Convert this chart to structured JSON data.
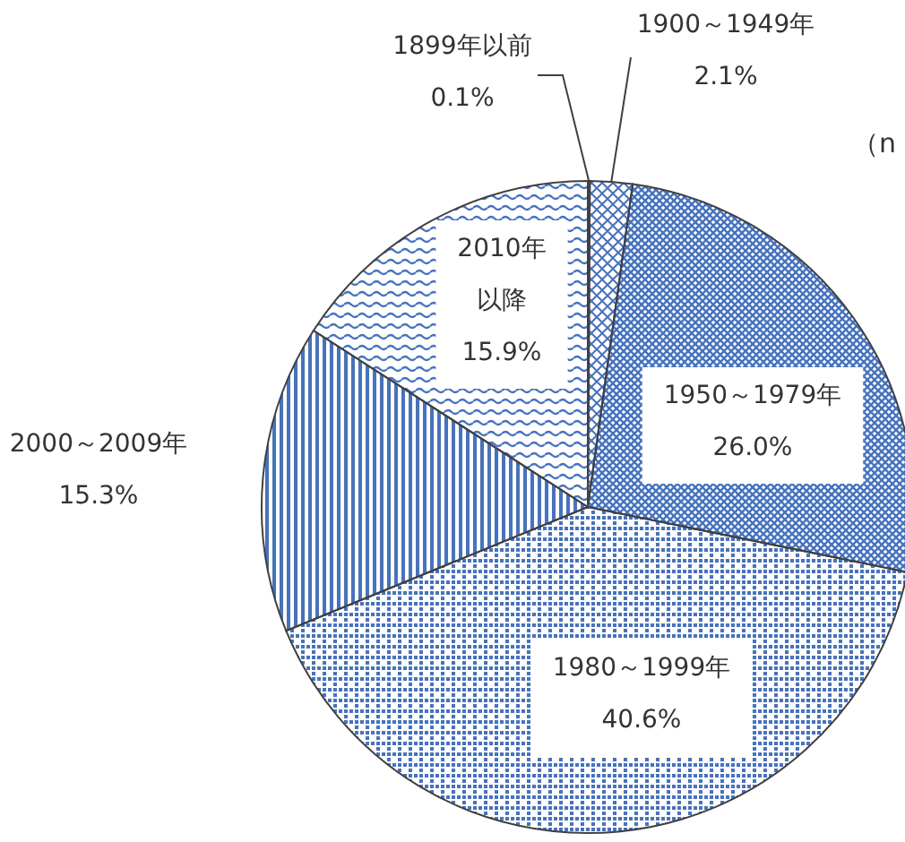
{
  "chart_data": {
    "type": "pie",
    "categories": [
      "1899年以前",
      "1900～1949年",
      "1950～1979年",
      "1980～1999年",
      "2000～2009年",
      "2010年以降"
    ],
    "values": [
      0.1,
      2.1,
      26.0,
      40.6,
      15.3,
      15.9
    ],
    "colors": [
      "#4472c4",
      "#4472c4",
      "#4472c4",
      "#4472c4",
      "#4472c4",
      "#4472c4"
    ],
    "value_labels": [
      "0.1%",
      "2.1%",
      "26.0%",
      "40.6%",
      "15.3%",
      "15.9%"
    ],
    "annotations": [
      "（n"
    ]
  }
}
